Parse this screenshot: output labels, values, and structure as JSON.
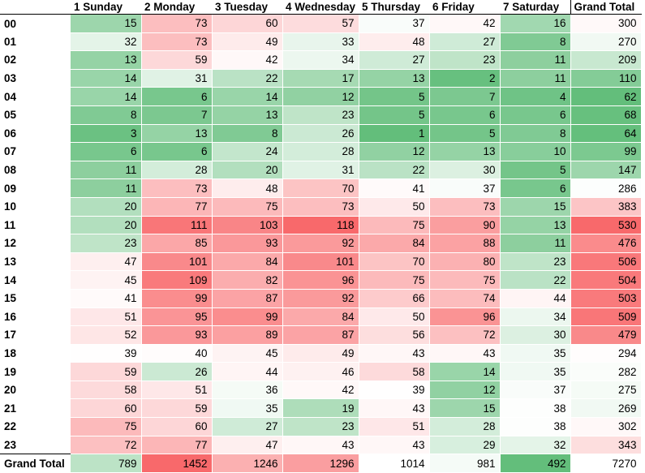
{
  "chart_data": {
    "type": "heatmap",
    "corner_label": "",
    "columns": [
      "1 Sunday",
      "2 Monday",
      "3 Tuesday",
      "4 Wednesday",
      "5 Thursday",
      "6 Friday",
      "7 Saturday"
    ],
    "total_label": "Grand Total",
    "rows": [
      "00",
      "01",
      "02",
      "03",
      "04",
      "05",
      "06",
      "07",
      "08",
      "09",
      "10",
      "11",
      "12",
      "13",
      "14",
      "15",
      "16",
      "17",
      "18",
      "19",
      "20",
      "21",
      "22",
      "23"
    ],
    "values": [
      [
        15,
        73,
        60,
        57,
        37,
        42,
        16
      ],
      [
        32,
        73,
        49,
        33,
        48,
        27,
        8
      ],
      [
        13,
        59,
        42,
        34,
        27,
        23,
        11
      ],
      [
        14,
        31,
        22,
        17,
        13,
        2,
        11
      ],
      [
        14,
        6,
        14,
        12,
        5,
        7,
        4
      ],
      [
        8,
        7,
        13,
        23,
        5,
        6,
        6
      ],
      [
        3,
        13,
        8,
        26,
        1,
        5,
        8
      ],
      [
        6,
        6,
        24,
        28,
        12,
        13,
        10
      ],
      [
        11,
        28,
        20,
        31,
        22,
        30,
        5
      ],
      [
        11,
        73,
        48,
        70,
        41,
        37,
        6
      ],
      [
        20,
        77,
        75,
        73,
        50,
        73,
        15
      ],
      [
        20,
        111,
        103,
        118,
        75,
        90,
        13
      ],
      [
        23,
        85,
        93,
        92,
        84,
        88,
        11
      ],
      [
        47,
        101,
        84,
        101,
        70,
        80,
        23
      ],
      [
        45,
        109,
        82,
        96,
        75,
        75,
        22
      ],
      [
        41,
        99,
        87,
        92,
        66,
        74,
        44
      ],
      [
        51,
        95,
        99,
        84,
        50,
        96,
        34
      ],
      [
        52,
        93,
        89,
        87,
        56,
        72,
        30
      ],
      [
        39,
        40,
        45,
        49,
        43,
        43,
        35
      ],
      [
        59,
        26,
        44,
        46,
        58,
        14,
        35
      ],
      [
        58,
        51,
        36,
        42,
        39,
        12,
        37
      ],
      [
        60,
        59,
        35,
        19,
        43,
        15,
        38
      ],
      [
        75,
        60,
        27,
        23,
        51,
        28,
        38
      ],
      [
        72,
        77,
        47,
        43,
        43,
        29,
        32
      ]
    ],
    "row_totals": [
      300,
      270,
      209,
      110,
      62,
      68,
      64,
      99,
      147,
      286,
      383,
      530,
      476,
      506,
      504,
      503,
      509,
      479,
      294,
      282,
      275,
      269,
      302,
      343
    ],
    "column_totals": [
      789,
      1452,
      1246,
      1296,
      1014,
      981,
      492
    ],
    "grand_total": 7270,
    "colors": {
      "low": "#63be7b",
      "mid": "#ffffff",
      "high": "#f8696b"
    }
  }
}
